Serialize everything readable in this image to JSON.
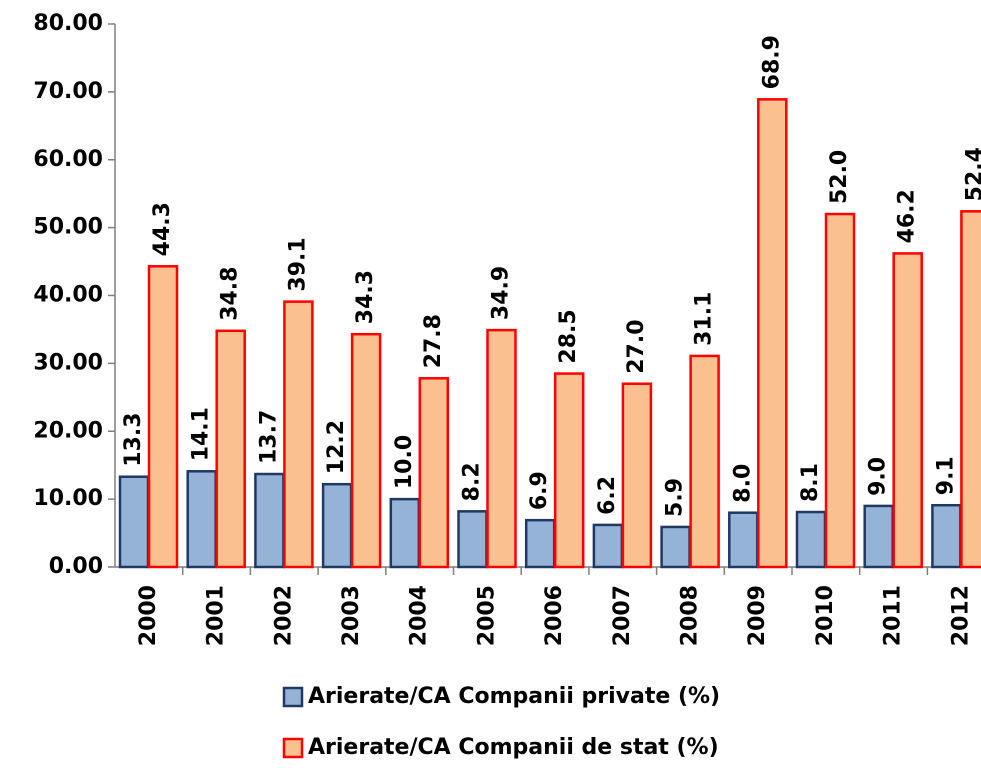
{
  "chart_data": {
    "type": "bar",
    "categories": [
      "2000",
      "2001",
      "2002",
      "2003",
      "2004",
      "2005",
      "2006",
      "2007",
      "2008",
      "2009",
      "2010",
      "2011",
      "2012"
    ],
    "series": [
      {
        "name": "Arierate/CA Companii private (%)",
        "color": "#95b3d7",
        "stroke": "#1f3864",
        "label_color": "#1f3864",
        "values": [
          13.3,
          14.1,
          13.7,
          12.2,
          10.0,
          8.2,
          6.9,
          6.2,
          5.9,
          8.0,
          8.1,
          9.0,
          9.1
        ],
        "value_labels": [
          "13.3",
          "14.1",
          "13.7",
          "12.2",
          "10.0",
          "8.2",
          "6.9",
          "6.2",
          "5.9",
          "8.0",
          "8.1",
          "9.0",
          "9.1"
        ]
      },
      {
        "name": "Arierate/CA Companii de stat (%)",
        "color": "#fac090",
        "stroke": "#ff0000",
        "label_color": "#ff0000",
        "values": [
          44.3,
          34.8,
          39.1,
          34.3,
          27.8,
          34.9,
          28.5,
          27.0,
          31.1,
          68.9,
          52.0,
          46.2,
          52.4
        ],
        "value_labels": [
          "44.3",
          "34.8",
          "39.1",
          "34.3",
          "27.8",
          "34.9",
          "28.5",
          "27.0",
          "31.1",
          "68.9",
          "52.0",
          "46.2",
          "52.4"
        ]
      }
    ],
    "ylim": [
      0,
      80
    ],
    "yticks": [
      {
        "value": 0,
        "label": "0.00"
      },
      {
        "value": 10,
        "label": "10.00"
      },
      {
        "value": 20,
        "label": "20.00"
      },
      {
        "value": 30,
        "label": "30.00"
      },
      {
        "value": 40,
        "label": "40.00"
      },
      {
        "value": 50,
        "label": "50.00"
      },
      {
        "value": 60,
        "label": "60.00"
      },
      {
        "value": 70,
        "label": "70.00"
      },
      {
        "value": 80,
        "label": "80.00"
      }
    ],
    "grid": false,
    "legend": "bottom"
  }
}
